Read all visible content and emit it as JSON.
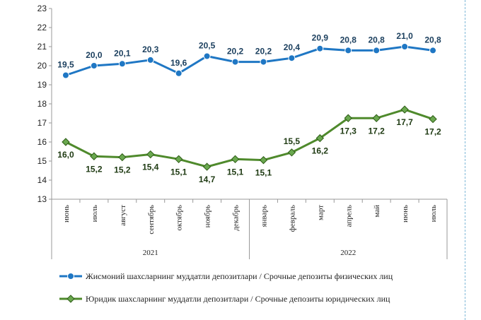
{
  "chart_data": {
    "type": "line",
    "categories": [
      "июнь",
      "июль",
      "август",
      "сентябрь",
      "октябрь",
      "ноябрь",
      "декабрь",
      "январь",
      "февраль",
      "март",
      "апрель",
      "май",
      "июнь",
      "июль"
    ],
    "years": [
      {
        "label": "2021",
        "from": 0,
        "to": 6
      },
      {
        "label": "2022",
        "from": 7,
        "to": 13
      }
    ],
    "ylim": [
      13,
      23
    ],
    "yticks": [
      13,
      14,
      15,
      16,
      17,
      18,
      19,
      20,
      21,
      22,
      23
    ],
    "grid": false,
    "legend_position": "bottom",
    "series": [
      {
        "name": "Жисмоний шахсларнинг муддатли депозитлари / Срочные депозиты физических лиц",
        "color": "#1f77c4",
        "marker": "circle",
        "values": [
          19.5,
          20.0,
          20.1,
          20.3,
          19.6,
          20.5,
          20.2,
          20.2,
          20.4,
          20.9,
          20.8,
          20.8,
          21.0,
          20.8
        ],
        "labels": [
          "19,5",
          "20,0",
          "20,1",
          "20,3",
          "19,6",
          "20,5",
          "20,2",
          "20,2",
          "20,4",
          "20,9",
          "20,8",
          "20,8",
          "21,0",
          "20,8"
        ]
      },
      {
        "name": "Юридик шахсларнинг муддатли депозитлари / Срочные депозиты юридических лиц",
        "color": "#4f8a2c",
        "marker": "diamond",
        "values": [
          16.0,
          15.25,
          15.2,
          15.35,
          15.1,
          14.7,
          15.1,
          15.05,
          15.45,
          16.2,
          17.25,
          17.25,
          17.7,
          17.2
        ],
        "labels": [
          "16,0",
          "15,2",
          "15,2",
          "15,4",
          "15,1",
          "14,7",
          "15,1",
          "15,1",
          "15,5",
          "16,2",
          "17,3",
          "17,2",
          "17,7",
          "17,2"
        ]
      }
    ]
  }
}
